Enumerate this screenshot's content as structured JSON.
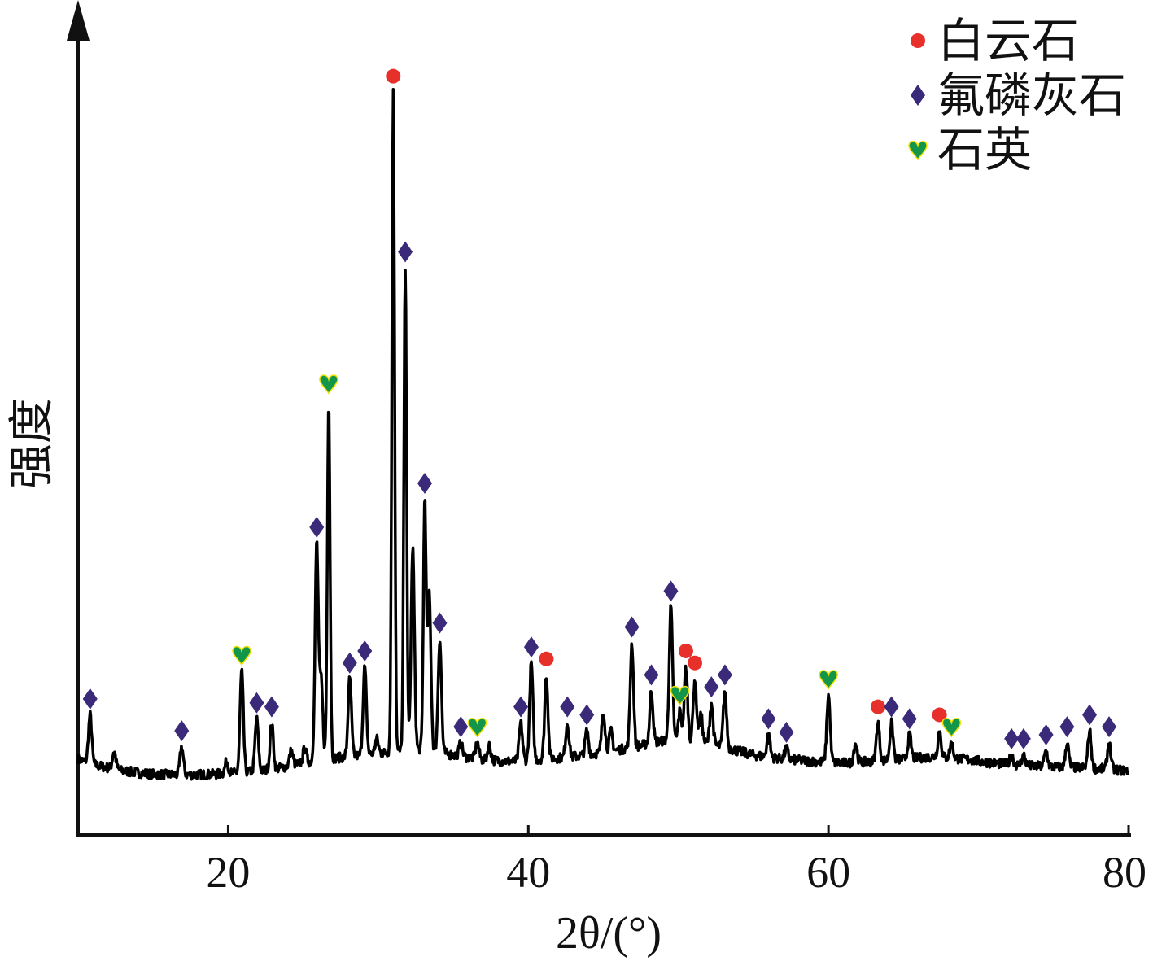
{
  "chart_data": {
    "type": "line",
    "xlabel": "2θ/(°)",
    "ylabel": "强度",
    "xlim": [
      10,
      80
    ],
    "ylim": [
      0,
      1000
    ],
    "x_ticks": [
      20,
      40,
      60,
      80
    ],
    "y_ticks_shown": false,
    "grid": false,
    "legend_position": "top-right",
    "legend": [
      {
        "key": "dolomite",
        "label": "白云石",
        "marker": "circle",
        "color": "#e8302a"
      },
      {
        "key": "fluorapatite",
        "label": "氟磷灰石",
        "marker": "diamond",
        "color": "#3b2a7a"
      },
      {
        "key": "quartz",
        "label": "石英",
        "marker": "heart",
        "color": "#14964a"
      }
    ],
    "baseline": {
      "x": [
        10,
        11,
        12,
        13,
        15,
        17,
        19,
        21,
        23,
        25,
        27,
        29,
        33,
        35,
        37,
        39,
        41,
        43,
        45,
        47,
        49,
        51,
        53,
        55,
        57,
        59,
        61,
        63,
        65,
        67,
        69,
        71,
        73,
        75,
        77,
        79,
        80
      ],
      "y": [
        95,
        88,
        84,
        80,
        76,
        75,
        76,
        78,
        82,
        90,
        96,
        100,
        108,
        100,
        94,
        92,
        95,
        98,
        103,
        110,
        118,
        118,
        110,
        100,
        95,
        92,
        90,
        92,
        95,
        98,
        95,
        90,
        87,
        85,
        84,
        82,
        80
      ]
    },
    "peaks": [
      {
        "x": 10.8,
        "y": 150,
        "phase": "fluorapatite"
      },
      {
        "x": 12.4,
        "y": 105,
        "phase": null
      },
      {
        "x": 16.9,
        "y": 110,
        "phase": "fluorapatite"
      },
      {
        "x": 19.9,
        "y": 92,
        "phase": null
      },
      {
        "x": 20.9,
        "y": 205,
        "phase": "quartz"
      },
      {
        "x": 21.9,
        "y": 145,
        "phase": "fluorapatite"
      },
      {
        "x": 22.9,
        "y": 140,
        "phase": "fluorapatite"
      },
      {
        "x": 24.2,
        "y": 105,
        "phase": null
      },
      {
        "x": 25.1,
        "y": 108,
        "phase": null
      },
      {
        "x": 25.9,
        "y": 365,
        "phase": "fluorapatite"
      },
      {
        "x": 26.2,
        "y": 190,
        "phase": null
      },
      {
        "x": 26.7,
        "y": 545,
        "phase": "quartz"
      },
      {
        "x": 28.1,
        "y": 195,
        "phase": "fluorapatite"
      },
      {
        "x": 29.1,
        "y": 210,
        "phase": "fluorapatite"
      },
      {
        "x": 29.9,
        "y": 120,
        "phase": null
      },
      {
        "x": 31.0,
        "y": 930,
        "phase": "dolomite"
      },
      {
        "x": 31.8,
        "y": 710,
        "phase": "fluorapatite"
      },
      {
        "x": 32.3,
        "y": 360,
        "phase": null
      },
      {
        "x": 33.1,
        "y": 420,
        "phase": "fluorapatite"
      },
      {
        "x": 33.4,
        "y": 300,
        "phase": null
      },
      {
        "x": 34.1,
        "y": 245,
        "phase": "fluorapatite"
      },
      {
        "x": 35.5,
        "y": 115,
        "phase": "fluorapatite"
      },
      {
        "x": 36.6,
        "y": 115,
        "phase": "quartz"
      },
      {
        "x": 37.4,
        "y": 112,
        "phase": null
      },
      {
        "x": 39.5,
        "y": 140,
        "phase": "fluorapatite"
      },
      {
        "x": 40.2,
        "y": 215,
        "phase": "fluorapatite"
      },
      {
        "x": 41.2,
        "y": 200,
        "phase": "dolomite"
      },
      {
        "x": 42.6,
        "y": 140,
        "phase": "fluorapatite"
      },
      {
        "x": 43.9,
        "y": 130,
        "phase": "fluorapatite"
      },
      {
        "x": 45.0,
        "y": 155,
        "phase": null
      },
      {
        "x": 45.5,
        "y": 130,
        "phase": null
      },
      {
        "x": 46.9,
        "y": 240,
        "phase": "fluorapatite"
      },
      {
        "x": 48.2,
        "y": 180,
        "phase": "fluorapatite"
      },
      {
        "x": 49.5,
        "y": 285,
        "phase": "fluorapatite"
      },
      {
        "x": 50.1,
        "y": 155,
        "phase": "quartz"
      },
      {
        "x": 50.5,
        "y": 210,
        "phase": "dolomite"
      },
      {
        "x": 51.1,
        "y": 195,
        "phase": "dolomite"
      },
      {
        "x": 51.5,
        "y": 150,
        "phase": null
      },
      {
        "x": 52.2,
        "y": 165,
        "phase": "fluorapatite"
      },
      {
        "x": 53.1,
        "y": 180,
        "phase": "fluorapatite"
      },
      {
        "x": 56.0,
        "y": 125,
        "phase": "fluorapatite"
      },
      {
        "x": 57.2,
        "y": 108,
        "phase": "fluorapatite"
      },
      {
        "x": 60.0,
        "y": 175,
        "phase": "quartz"
      },
      {
        "x": 61.8,
        "y": 115,
        "phase": null
      },
      {
        "x": 63.3,
        "y": 140,
        "phase": "dolomite"
      },
      {
        "x": 64.2,
        "y": 140,
        "phase": "fluorapatite"
      },
      {
        "x": 65.4,
        "y": 125,
        "phase": "fluorapatite"
      },
      {
        "x": 67.4,
        "y": 130,
        "phase": "dolomite"
      },
      {
        "x": 68.2,
        "y": 115,
        "phase": "quartz"
      },
      {
        "x": 72.2,
        "y": 100,
        "phase": "fluorapatite"
      },
      {
        "x": 73.0,
        "y": 100,
        "phase": "fluorapatite"
      },
      {
        "x": 74.5,
        "y": 105,
        "phase": "fluorapatite"
      },
      {
        "x": 75.9,
        "y": 115,
        "phase": "fluorapatite"
      },
      {
        "x": 77.4,
        "y": 130,
        "phase": "fluorapatite"
      },
      {
        "x": 78.7,
        "y": 115,
        "phase": "fluorapatite"
      }
    ]
  }
}
